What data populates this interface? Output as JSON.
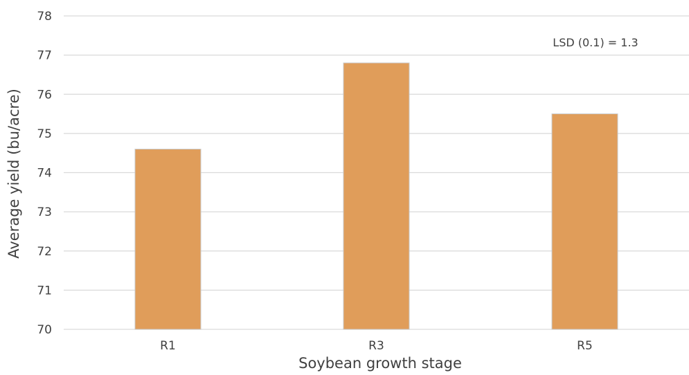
{
  "chart_data": {
    "type": "bar",
    "categories": [
      "R1",
      "R3",
      "R5"
    ],
    "values": [
      74.6,
      76.8,
      75.5
    ],
    "xlabel": "Soybean growth stage",
    "ylabel": "Average yield (bu/acre)",
    "ylim": [
      70,
      78
    ],
    "yticks": [
      70,
      71,
      72,
      73,
      74,
      75,
      76,
      77,
      78
    ],
    "annotation": "LSD (0.1) = 1.3",
    "grid": true,
    "bar_color": "#E09D5A",
    "bar_border_color": "#C9C9C9",
    "grid_color": "#D9D9D9"
  }
}
